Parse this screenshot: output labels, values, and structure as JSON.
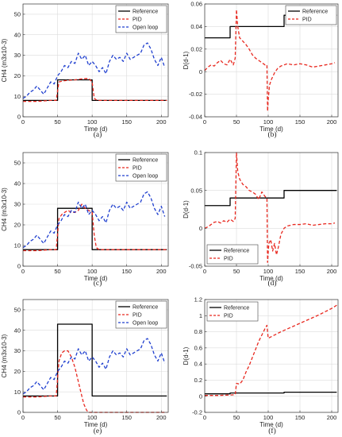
{
  "chart_data": [
    {
      "type": "line",
      "panel": "(a)",
      "xlabel": "Time (d)",
      "ylabel": "CH4 (m3x10-3)",
      "xlim": [
        0,
        210
      ],
      "ylim": [
        0,
        55
      ],
      "xticks": [
        0,
        50,
        100,
        150,
        200
      ],
      "yticks": [
        0,
        10,
        20,
        30,
        40,
        50
      ],
      "grid": true,
      "legend_position": "top-right",
      "series": [
        {
          "name": "Reference",
          "color": "#000000",
          "dash": "solid",
          "x": [
            0,
            50,
            50,
            100,
            100,
            208
          ],
          "y": [
            8,
            8,
            18,
            18,
            8,
            8
          ]
        },
        {
          "name": "PID",
          "color": "#e8281f",
          "dash": "dashed",
          "x": [
            0,
            20,
            40,
            48,
            52,
            58,
            65,
            75,
            85,
            95,
            100,
            103,
            107,
            115,
            130,
            160,
            208
          ],
          "y": [
            7.5,
            7.5,
            8,
            8,
            17,
            17.5,
            17.8,
            18,
            18.5,
            18.7,
            17,
            9,
            8,
            8,
            8,
            8,
            8
          ]
        },
        {
          "name": "Open loop",
          "color": "#1f3fcf",
          "dash": "dashed",
          "x": [
            0,
            5,
            10,
            15,
            20,
            25,
            30,
            35,
            40,
            45,
            50,
            55,
            60,
            65,
            70,
            75,
            80,
            85,
            90,
            95,
            100,
            105,
            110,
            115,
            120,
            125,
            130,
            135,
            140,
            145,
            150,
            155,
            160,
            165,
            170,
            175,
            180,
            185,
            190,
            195,
            200,
            205
          ],
          "y": [
            9,
            10,
            12,
            13,
            15,
            13,
            11,
            14,
            17,
            16,
            20,
            22,
            25,
            24,
            27,
            26,
            31,
            28,
            30,
            25,
            27,
            25,
            22,
            24,
            21,
            27,
            30,
            28,
            29,
            27,
            31,
            28,
            29,
            30,
            31,
            35,
            36,
            33,
            28,
            25,
            29,
            24
          ]
        }
      ]
    },
    {
      "type": "line",
      "panel": "(b)",
      "xlabel": "Time (d)",
      "ylabel": "D(d-1)",
      "xlim": [
        0,
        210
      ],
      "ylim": [
        -0.04,
        0.06
      ],
      "xticks": [
        0,
        50,
        100,
        150,
        200
      ],
      "yticks": [
        -0.04,
        -0.02,
        0,
        0.02,
        0.04,
        0.06
      ],
      "ytick_labels": [
        "-0.04",
        "-0.02",
        "0",
        "0.02",
        "0.04",
        "0.06"
      ],
      "grid": true,
      "legend_position": "top-right",
      "series": [
        {
          "name": "Reference",
          "color": "#000000",
          "dash": "solid",
          "x": [
            0,
            40,
            40,
            125,
            125,
            208
          ],
          "y": [
            0.03,
            0.03,
            0.04,
            0.04,
            0.05,
            0.05
          ]
        },
        {
          "name": "PID",
          "color": "#e8281f",
          "dash": "dashed",
          "x": [
            0,
            5,
            10,
            15,
            20,
            25,
            30,
            35,
            40,
            45,
            48,
            50,
            52,
            55,
            60,
            65,
            70,
            75,
            80,
            85,
            90,
            95,
            98,
            99,
            100,
            102,
            105,
            110,
            115,
            120,
            130,
            140,
            150,
            160,
            170,
            180,
            190,
            200,
            205
          ],
          "y": [
            0.001,
            0.004,
            0.006,
            0.005,
            0.008,
            0.01,
            0.007,
            0.006,
            0.011,
            0.006,
            0.012,
            0.055,
            0.04,
            0.03,
            0.027,
            0.024,
            0.02,
            0.015,
            0.012,
            0.01,
            0.008,
            0.006,
            0.006,
            -0.035,
            -0.025,
            -0.012,
            -0.007,
            -0.001,
            0.003,
            0.005,
            0.007,
            0.006,
            0.007,
            0.006,
            0.004,
            0.005,
            0.006,
            0.007,
            0.008
          ]
        }
      ]
    },
    {
      "type": "line",
      "panel": "(c)",
      "xlabel": "Time (d)",
      "ylabel": "CH4 (m3x10-3)",
      "xlim": [
        0,
        210
      ],
      "ylim": [
        0,
        55
      ],
      "xticks": [
        0,
        50,
        100,
        150,
        200
      ],
      "yticks": [
        0,
        10,
        20,
        30,
        40,
        50
      ],
      "grid": true,
      "legend_position": "top-right",
      "series": [
        {
          "name": "Reference",
          "color": "#000000",
          "dash": "solid",
          "x": [
            0,
            50,
            50,
            100,
            100,
            208
          ],
          "y": [
            8,
            8,
            28,
            28,
            8,
            8
          ]
        },
        {
          "name": "PID",
          "color": "#e8281f",
          "dash": "dashed",
          "x": [
            0,
            20,
            40,
            48,
            52,
            56,
            60,
            65,
            70,
            75,
            80,
            85,
            90,
            95,
            100,
            103,
            106,
            110,
            115,
            130,
            160,
            208
          ],
          "y": [
            7.5,
            7.5,
            8,
            8,
            23,
            25,
            26,
            27,
            26,
            26,
            27,
            30,
            28,
            27,
            26,
            15,
            9,
            8,
            8,
            8,
            8,
            8
          ]
        },
        {
          "name": "Open loop",
          "color": "#1f3fcf",
          "dash": "dashed",
          "x": [
            0,
            5,
            10,
            15,
            20,
            25,
            30,
            35,
            40,
            45,
            50,
            55,
            60,
            65,
            70,
            75,
            80,
            85,
            90,
            95,
            100,
            105,
            110,
            115,
            120,
            125,
            130,
            135,
            140,
            145,
            150,
            155,
            160,
            165,
            170,
            175,
            180,
            185,
            190,
            195,
            200,
            205
          ],
          "y": [
            9,
            10,
            12,
            13,
            15,
            13,
            11,
            14,
            17,
            16,
            20,
            22,
            25,
            24,
            27,
            26,
            31,
            28,
            30,
            25,
            27,
            25,
            22,
            24,
            21,
            27,
            30,
            28,
            29,
            27,
            31,
            28,
            29,
            30,
            31,
            35,
            36,
            33,
            28,
            25,
            29,
            24
          ]
        }
      ]
    },
    {
      "type": "line",
      "panel": "(d)",
      "xlabel": "Time (d)",
      "ylabel": "D(d-1)",
      "xlim": [
        0,
        210
      ],
      "ylim": [
        -0.05,
        0.1
      ],
      "xticks": [
        0,
        50,
        100,
        150,
        200
      ],
      "yticks": [
        -0.05,
        0,
        0.05,
        0.1
      ],
      "ytick_labels": [
        "-0.05",
        "0",
        "0.05",
        "0.1"
      ],
      "grid": true,
      "legend_position": "bottom-left",
      "series": [
        {
          "name": "Reference",
          "color": "#000000",
          "dash": "solid",
          "x": [
            0,
            40,
            40,
            125,
            125,
            208
          ],
          "y": [
            0.03,
            0.03,
            0.04,
            0.04,
            0.05,
            0.05
          ]
        },
        {
          "name": "PID",
          "color": "#e8281f",
          "dash": "dashed",
          "x": [
            0,
            5,
            10,
            15,
            20,
            25,
            30,
            35,
            40,
            45,
            48,
            50,
            52,
            55,
            60,
            65,
            70,
            75,
            80,
            85,
            90,
            95,
            98,
            99,
            101,
            104,
            107,
            110,
            113,
            116,
            120,
            125,
            130,
            140,
            150,
            160,
            170,
            180,
            190,
            200,
            205
          ],
          "y": [
            0.0,
            0.002,
            0.005,
            0.008,
            0.009,
            0.007,
            0.01,
            0.008,
            0.012,
            0.009,
            0.013,
            0.1,
            0.075,
            0.065,
            0.058,
            0.055,
            0.05,
            0.048,
            0.045,
            0.038,
            0.048,
            0.042,
            0.04,
            -0.045,
            -0.02,
            -0.015,
            -0.03,
            -0.02,
            -0.035,
            -0.025,
            -0.008,
            0.0,
            0.003,
            0.005,
            0.005,
            0.006,
            0.004,
            0.005,
            0.006,
            0.006,
            0.007
          ]
        }
      ]
    },
    {
      "type": "line",
      "panel": "(e)",
      "xlabel": "Time (d)",
      "ylabel": "CH4 (m3x10-3)",
      "xlim": [
        0,
        210
      ],
      "ylim": [
        0,
        55
      ],
      "xticks": [
        0,
        50,
        100,
        150,
        200
      ],
      "yticks": [
        0,
        10,
        20,
        30,
        40,
        50
      ],
      "grid": true,
      "legend_position": "top-right",
      "series": [
        {
          "name": "Reference",
          "color": "#000000",
          "dash": "solid",
          "x": [
            0,
            50,
            50,
            100,
            100,
            208
          ],
          "y": [
            8,
            8,
            43,
            43,
            8,
            8
          ]
        },
        {
          "name": "PID",
          "color": "#e8281f",
          "dash": "dashed",
          "x": [
            0,
            20,
            40,
            48,
            52,
            56,
            60,
            65,
            70,
            75,
            80,
            85,
            88,
            92,
            95,
            100,
            110,
            130,
            160,
            208
          ],
          "y": [
            7.5,
            7.5,
            8,
            8,
            25,
            29,
            30,
            30,
            27,
            22,
            15,
            8,
            4,
            1,
            0,
            0,
            0,
            0,
            0,
            0
          ]
        },
        {
          "name": "Open loop",
          "color": "#1f3fcf",
          "dash": "dashed",
          "x": [
            0,
            5,
            10,
            15,
            20,
            25,
            30,
            35,
            40,
            45,
            50,
            55,
            60,
            65,
            70,
            75,
            80,
            85,
            90,
            95,
            100,
            105,
            110,
            115,
            120,
            125,
            130,
            135,
            140,
            145,
            150,
            155,
            160,
            165,
            170,
            175,
            180,
            185,
            190,
            195,
            200,
            205
          ],
          "y": [
            9,
            10,
            12,
            13,
            15,
            13,
            11,
            14,
            17,
            16,
            20,
            22,
            25,
            24,
            27,
            26,
            31,
            28,
            30,
            25,
            27,
            25,
            22,
            24,
            21,
            27,
            30,
            28,
            29,
            27,
            31,
            28,
            29,
            30,
            31,
            35,
            36,
            33,
            28,
            25,
            29,
            24
          ]
        }
      ]
    },
    {
      "type": "line",
      "panel": "(f)",
      "xlabel": "Time (d)",
      "ylabel": "D(d-1)",
      "xlim": [
        0,
        210
      ],
      "ylim": [
        -0.2,
        1.2
      ],
      "xticks": [
        0,
        50,
        100,
        150,
        200
      ],
      "yticks": [
        -0.2,
        0,
        0.2,
        0.4,
        0.6,
        0.8,
        1,
        1.2
      ],
      "ytick_labels": [
        "-0.2",
        "0",
        "0.2",
        "0.4",
        "0.6",
        "0.8",
        "1",
        "1.2"
      ],
      "grid": true,
      "legend_position": "top-left",
      "series": [
        {
          "name": "Reference",
          "color": "#000000",
          "dash": "solid",
          "x": [
            0,
            40,
            40,
            125,
            125,
            208
          ],
          "y": [
            0.03,
            0.03,
            0.04,
            0.04,
            0.05,
            0.05
          ]
        },
        {
          "name": "PID",
          "color": "#e8281f",
          "dash": "dashed",
          "x": [
            0,
            20,
            40,
            48,
            50,
            55,
            60,
            65,
            70,
            75,
            80,
            85,
            90,
            95,
            98,
            100,
            105,
            120,
            140,
            160,
            180,
            200,
            208
          ],
          "y": [
            0.01,
            0.01,
            0.015,
            0.02,
            0.16,
            0.15,
            0.2,
            0.3,
            0.38,
            0.48,
            0.58,
            0.68,
            0.76,
            0.84,
            0.88,
            0.72,
            0.74,
            0.8,
            0.87,
            0.94,
            1.01,
            1.09,
            1.13
          ]
        }
      ]
    }
  ]
}
